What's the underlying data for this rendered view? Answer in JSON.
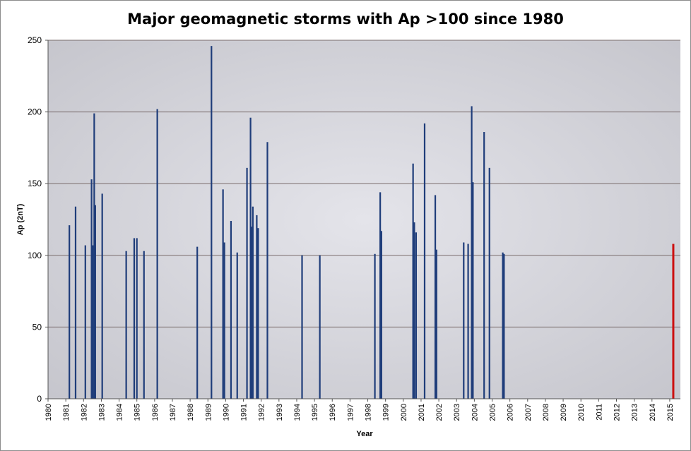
{
  "chart_data": {
    "type": "bar",
    "title": "Major geomagnetic storms with Ap >100 since 1980",
    "xlabel": "Year",
    "ylabel": "Ap (2nT)",
    "ylim": [
      0,
      250
    ],
    "xlim": [
      1980,
      2015.6
    ],
    "yticks": [
      "0",
      "50",
      "100",
      "150",
      "200",
      "250"
    ],
    "xticks": [
      "1980",
      "1981",
      "1982",
      "1983",
      "1984",
      "1985",
      "1986",
      "1987",
      "1988",
      "1989",
      "1990",
      "1991",
      "1992",
      "1993",
      "1994",
      "1995",
      "1996",
      "1997",
      "1998",
      "1999",
      "2000",
      "2001",
      "2002",
      "2003",
      "2004",
      "2005",
      "2006",
      "2007",
      "2008",
      "2009",
      "2010",
      "2011",
      "2012",
      "2013",
      "2014",
      "2015"
    ],
    "grid": true,
    "legend": "none",
    "colors": {
      "bar": "#1f3d7a",
      "highlight": "#cc1111",
      "plot_bg": "#cfcfd5",
      "grid": "#7a6d6d"
    },
    "series": [
      {
        "color": "#1f3d7a",
        "points": [
          {
            "x": 1981.2,
            "y": 121
          },
          {
            "x": 1981.55,
            "y": 134
          },
          {
            "x": 1982.1,
            "y": 107
          },
          {
            "x": 1982.45,
            "y": 153
          },
          {
            "x": 1982.52,
            "y": 107
          },
          {
            "x": 1982.6,
            "y": 199
          },
          {
            "x": 1982.66,
            "y": 135
          },
          {
            "x": 1983.05,
            "y": 143
          },
          {
            "x": 1984.4,
            "y": 103
          },
          {
            "x": 1984.85,
            "y": 112
          },
          {
            "x": 1985.0,
            "y": 112
          },
          {
            "x": 1985.4,
            "y": 103
          },
          {
            "x": 1986.15,
            "y": 202
          },
          {
            "x": 1988.4,
            "y": 106
          },
          {
            "x": 1989.2,
            "y": 246
          },
          {
            "x": 1989.85,
            "y": 146
          },
          {
            "x": 1989.93,
            "y": 109
          },
          {
            "x": 1990.3,
            "y": 124
          },
          {
            "x": 1990.65,
            "y": 102
          },
          {
            "x": 1991.2,
            "y": 161
          },
          {
            "x": 1991.4,
            "y": 196
          },
          {
            "x": 1991.47,
            "y": 120
          },
          {
            "x": 1991.53,
            "y": 134
          },
          {
            "x": 1991.75,
            "y": 128
          },
          {
            "x": 1991.83,
            "y": 119
          },
          {
            "x": 1992.35,
            "y": 179
          },
          {
            "x": 1994.3,
            "y": 100
          },
          {
            "x": 1995.3,
            "y": 100
          },
          {
            "x": 1998.4,
            "y": 101
          },
          {
            "x": 1998.7,
            "y": 144
          },
          {
            "x": 1998.77,
            "y": 117
          },
          {
            "x": 2000.55,
            "y": 164
          },
          {
            "x": 2000.62,
            "y": 123
          },
          {
            "x": 2000.72,
            "y": 116
          },
          {
            "x": 2001.2,
            "y": 192
          },
          {
            "x": 2001.8,
            "y": 142
          },
          {
            "x": 2001.87,
            "y": 104
          },
          {
            "x": 2003.4,
            "y": 109
          },
          {
            "x": 2003.65,
            "y": 108
          },
          {
            "x": 2003.85,
            "y": 204
          },
          {
            "x": 2003.92,
            "y": 151
          },
          {
            "x": 2004.55,
            "y": 186
          },
          {
            "x": 2004.85,
            "y": 161
          },
          {
            "x": 2005.6,
            "y": 102
          },
          {
            "x": 2005.67,
            "y": 101
          }
        ]
      },
      {
        "color": "#cc1111",
        "points": [
          {
            "x": 2015.2,
            "y": 108
          }
        ]
      }
    ]
  }
}
